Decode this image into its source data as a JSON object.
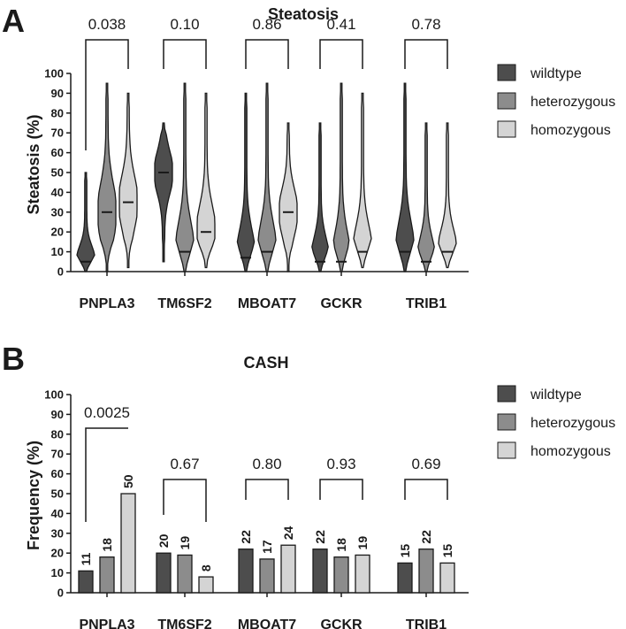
{
  "colors": {
    "wildtype": "#4d4d4d",
    "heterozygous": "#8c8c8c",
    "homozygous": "#d4d4d4",
    "ink": "#1a1a1a"
  },
  "chart_data": [
    {
      "panel": "A",
      "type": "violin",
      "title": "Steatosis",
      "ylabel": "Steatosis (%)",
      "ylim": [
        0,
        100
      ],
      "yticks": [
        0,
        10,
        20,
        30,
        40,
        50,
        60,
        70,
        80,
        90,
        100
      ],
      "categories": [
        "PNPLA3",
        "TM6SF2",
        "MBOAT7",
        "GCKR",
        "TRIB1"
      ],
      "p_values": [
        "0.038",
        "0.10",
        "0.86",
        "0.41",
        "0.78"
      ],
      "legend_position": "right",
      "series": [
        {
          "name": "wildtype",
          "min": [
            0,
            5,
            0,
            0,
            0
          ],
          "max": [
            50,
            75,
            90,
            75,
            95
          ],
          "median": [
            5,
            50,
            7,
            5,
            10
          ]
        },
        {
          "name": "heterozygous",
          "min": [
            0,
            0,
            0,
            0,
            0
          ],
          "max": [
            95,
            95,
            95,
            95,
            75
          ],
          "median": [
            30,
            10,
            10,
            5,
            5
          ]
        },
        {
          "name": "homozygous",
          "min": [
            2,
            2,
            0,
            2,
            2
          ],
          "max": [
            90,
            90,
            75,
            90,
            75
          ],
          "median": [
            35,
            20,
            30,
            10,
            10
          ]
        }
      ]
    },
    {
      "panel": "B",
      "type": "bar",
      "title": "CASH",
      "ylabel": "Frequency (%)",
      "ylim": [
        0,
        100
      ],
      "yticks": [
        0,
        10,
        20,
        30,
        40,
        50,
        60,
        70,
        80,
        90,
        100
      ],
      "categories": [
        "PNPLA3",
        "TM6SF2",
        "MBOAT7",
        "GCKR",
        "TRIB1"
      ],
      "p_values": [
        "0.0025",
        "0.67",
        "0.80",
        "0.93",
        "0.69"
      ],
      "legend_position": "right",
      "series": [
        {
          "name": "wildtype",
          "values": [
            11,
            20,
            22,
            22,
            15
          ]
        },
        {
          "name": "heterozygous",
          "values": [
            18,
            19,
            17,
            18,
            22
          ]
        },
        {
          "name": "homozygous",
          "values": [
            50,
            8,
            24,
            19,
            15
          ]
        }
      ]
    }
  ]
}
